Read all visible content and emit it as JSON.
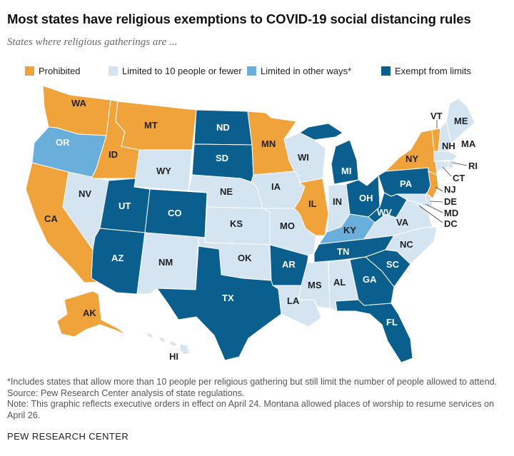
{
  "title": "Most states have religious exemptions to COVID-19 social distancing rules",
  "subtitle": "States where religious gatherings are ...",
  "legend": [
    {
      "label": "Prohibited",
      "color": "#f0a23b"
    },
    {
      "label": "Limited to 10 people or fewer",
      "color": "#d5e4f1"
    },
    {
      "label": "Limited in other ways*",
      "color": "#6aaedb"
    },
    {
      "label": "Exempt from limits",
      "color": "#0a5f8f"
    }
  ],
  "states": {
    "prohibited": [
      "WA",
      "MT",
      "ID",
      "MN",
      "CA",
      "AK",
      "IL",
      "NY",
      "VT",
      "NJ"
    ],
    "limited_10": [
      "NV",
      "WY",
      "NE",
      "IA",
      "WI",
      "KS",
      "MO",
      "IN",
      "NM",
      "OK",
      "LA",
      "MS",
      "AL",
      "NC",
      "VA",
      "ME",
      "NH",
      "MA",
      "RI",
      "CT",
      "DE",
      "MD",
      "DC",
      "HI"
    ],
    "limited_other": [
      "OR",
      "KY"
    ],
    "exempt": [
      "ND",
      "SD",
      "UT",
      "CO",
      "AZ",
      "TX",
      "AR",
      "TN",
      "MI",
      "OH",
      "PA",
      "WV",
      "GA",
      "SC",
      "FL"
    ]
  },
  "labels": {
    "WA": "WA",
    "OR": "OR",
    "CA": "CA",
    "ID": "ID",
    "MT": "MT",
    "WY": "WY",
    "NV": "NV",
    "UT": "UT",
    "CO": "CO",
    "AZ": "AZ",
    "NM": "NM",
    "ND": "ND",
    "SD": "SD",
    "NE": "NE",
    "KS": "KS",
    "OK": "OK",
    "TX": "TX",
    "MN": "MN",
    "IA": "IA",
    "MO": "MO",
    "AR": "AR",
    "LA": "LA",
    "WI": "WI",
    "IL": "IL",
    "MI": "MI",
    "IN": "IN",
    "OH": "OH",
    "KY": "KY",
    "TN": "TN",
    "MS": "MS",
    "AL": "AL",
    "GA": "GA",
    "FL": "FL",
    "SC": "SC",
    "NC": "NC",
    "VA": "VA",
    "WV": "WV",
    "PA": "PA",
    "NY": "NY",
    "VT": "VT",
    "NH": "NH",
    "ME": "ME",
    "MA": "MA",
    "RI": "RI",
    "CT": "CT",
    "NJ": "NJ",
    "DE": "DE",
    "MD": "MD",
    "DC": "DC",
    "AK": "AK",
    "HI": "HI"
  },
  "notes": {
    "footnote": "*Includes states that allow more than 10 people per religious gathering but still limit the number of people allowed to attend.",
    "source": "Source: Pew Research Center analysis of state regulations.",
    "note": "Note: This graphic reflects executive orders in effect on April 24. Montana allowed places of worship to resume services on April 26."
  },
  "org": "PEW RESEARCH CENTER"
}
